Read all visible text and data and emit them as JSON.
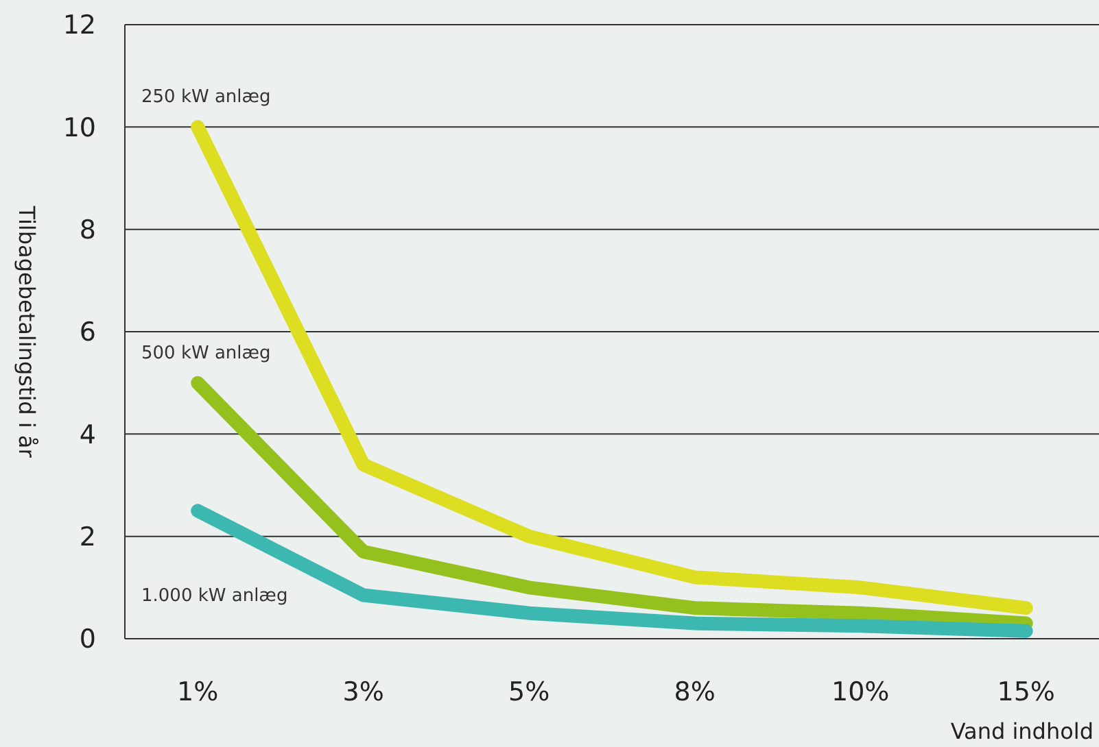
{
  "chart_data": {
    "type": "line",
    "xlabel": "Vand indhold",
    "ylabel": "Tilbagebetalingstid i år",
    "categories": [
      "1%",
      "3%",
      "5%",
      "8%",
      "10%",
      "15%"
    ],
    "series": [
      {
        "name": "250 kW anlæg",
        "color": "#dddd22",
        "values": [
          10,
          3.4,
          2,
          1.2,
          1,
          0.6
        ]
      },
      {
        "name": "500 kW anlæg",
        "color": "#95c11f",
        "values": [
          5,
          1.7,
          1,
          0.6,
          0.5,
          0.3
        ]
      },
      {
        "name": "1.000 kW anlæg",
        "color": "#3db8b0",
        "values": [
          2.5,
          0.85,
          0.5,
          0.3,
          0.25,
          0.15
        ]
      }
    ],
    "ylim": [
      0,
      12
    ],
    "yticks": [
      0,
      2,
      4,
      6,
      8,
      10,
      12
    ],
    "grid": "y",
    "legend": false,
    "marker": "none",
    "line_style": "solid"
  }
}
